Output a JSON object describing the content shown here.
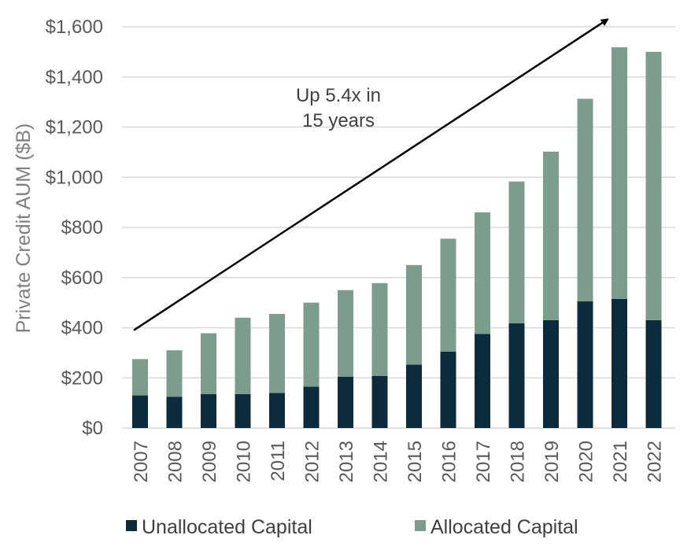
{
  "chart_data": {
    "type": "bar",
    "stacked": true,
    "title": "",
    "xlabel": "",
    "ylabel": "Private Credit AUM ($B)",
    "ylim": [
      0,
      1600
    ],
    "yticks": [
      0,
      200,
      400,
      600,
      800,
      1000,
      1200,
      1400,
      1600
    ],
    "ytick_labels": [
      "$0",
      "$200",
      "$400",
      "$600",
      "$800",
      "$1,000",
      "$1,200",
      "$1,400",
      "$1,600"
    ],
    "grid": true,
    "legend_position": "bottom",
    "categories": [
      "2007",
      "2008",
      "2009",
      "2010",
      "2011",
      "2012",
      "2013",
      "2014",
      "2015",
      "2016",
      "2017",
      "2018",
      "2019",
      "2020",
      "2021",
      "2022"
    ],
    "series": [
      {
        "name": "Unallocated Capital",
        "color": "#0c2b3d",
        "values": [
          130,
          125,
          135,
          135,
          140,
          165,
          205,
          208,
          253,
          305,
          375,
          418,
          430,
          505,
          515,
          430
        ]
      },
      {
        "name": "Allocated Capital",
        "color": "#7c9d8e",
        "values": [
          145,
          185,
          243,
          305,
          315,
          335,
          345,
          370,
          397,
          450,
          485,
          565,
          672,
          808,
          1003,
          1070
        ]
      }
    ],
    "annotations": [
      {
        "text_lines": [
          "Up 5.4x in",
          "15 years"
        ]
      }
    ],
    "trend_arrow": {
      "from": {
        "category": "2007",
        "value": 390
      },
      "to": {
        "category": "2021",
        "value": 1620
      }
    }
  }
}
